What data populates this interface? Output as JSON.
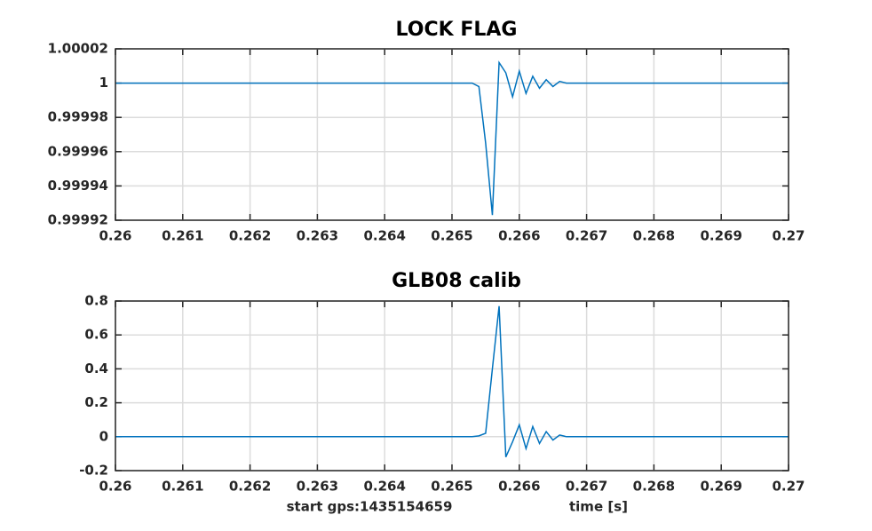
{
  "chart_data": [
    {
      "type": "line",
      "title": "LOCK FLAG",
      "x": [
        0.26,
        0.2653,
        0.2654,
        0.2655,
        0.2656,
        0.2657,
        0.2658,
        0.2659,
        0.266,
        0.2661,
        0.2662,
        0.2663,
        0.2664,
        0.2665,
        0.2666,
        0.2667,
        0.27
      ],
      "series": [
        {
          "color": "#0072bd",
          "values": [
            1,
            1,
            0.999998,
            0.999965,
            0.999923,
            1.000012,
            1.000006,
            0.999992,
            1.000007,
            0.999994,
            1.000004,
            0.999997,
            1.000002,
            0.999998,
            1.000001,
            1,
            1
          ]
        }
      ],
      "xlim": [
        0.26,
        0.27
      ],
      "xticks": [
        0.26,
        0.261,
        0.262,
        0.263,
        0.264,
        0.265,
        0.266,
        0.267,
        0.268,
        0.269,
        0.27
      ],
      "ylim": [
        0.99992,
        1.00002
      ],
      "yticks": [
        0.99992,
        0.99994,
        0.99996,
        0.99998,
        1,
        1.00002
      ],
      "grid": true
    },
    {
      "type": "line",
      "title": "GLB08 calib",
      "xlabel": "time [s]",
      "annotation": "start gps:1435154659",
      "x": [
        0.26,
        0.2653,
        0.2654,
        0.2655,
        0.2656,
        0.2657,
        0.2658,
        0.2659,
        0.266,
        0.2661,
        0.2662,
        0.2663,
        0.2664,
        0.2665,
        0.2666,
        0.2667,
        0.27
      ],
      "series": [
        {
          "color": "#0072bd",
          "values": [
            0,
            0,
            0.005,
            0.02,
            0.4,
            0.77,
            -0.12,
            -0.03,
            0.07,
            -0.07,
            0.06,
            -0.04,
            0.03,
            -0.02,
            0.01,
            0,
            0
          ]
        }
      ],
      "xlim": [
        0.26,
        0.27
      ],
      "xticks": [
        0.26,
        0.261,
        0.262,
        0.263,
        0.264,
        0.265,
        0.266,
        0.267,
        0.268,
        0.269,
        0.27
      ],
      "ylim": [
        -0.2,
        0.8
      ],
      "yticks": [
        -0.2,
        0,
        0.2,
        0.4,
        0.6,
        0.8
      ],
      "grid": true
    }
  ]
}
